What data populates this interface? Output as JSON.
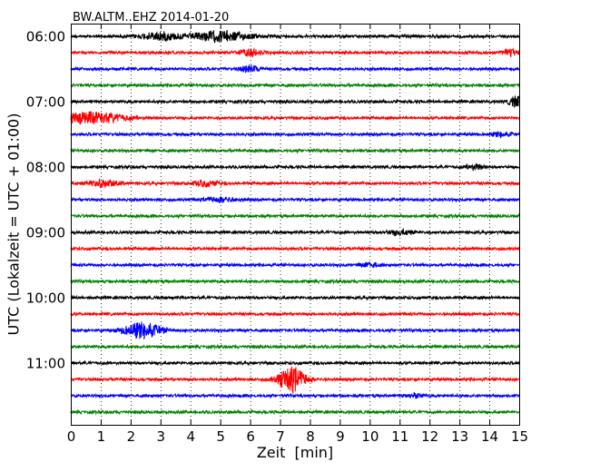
{
  "chart_data": {
    "type": "line",
    "title": "BW.ALTM..EHZ 2014-01-20",
    "xlabel": "Zeit  [min]",
    "ylabel": "UTC (Lokalzeit = UTC + 01:00)",
    "xlim": [
      0,
      15
    ],
    "x_ticks": [
      0,
      1,
      2,
      3,
      4,
      5,
      6,
      7,
      8,
      9,
      10,
      11,
      12,
      13,
      14,
      15
    ],
    "x_tick_labels": [
      "0",
      "1",
      "2",
      "3",
      "4",
      "5",
      "6",
      "7",
      "8",
      "9",
      "10",
      "11",
      "12",
      "13",
      "14",
      "15"
    ],
    "y_tick_labels": [
      "06:00",
      "07:00",
      "08:00",
      "09:00",
      "10:00",
      "11:00"
    ],
    "grid": "vertical dotted",
    "colors": [
      "#000000",
      "#ff0000",
      "#0000ff",
      "#008000"
    ],
    "series": [
      {
        "start": "06:00",
        "color": "#000000",
        "events": [
          {
            "t": 3.0,
            "amp": 0.7,
            "dur": 1.2
          },
          {
            "t": 5.0,
            "amp": 0.9,
            "dur": 1.8
          }
        ]
      },
      {
        "start": "06:15",
        "color": "#ff0000",
        "events": [
          {
            "t": 6.0,
            "amp": 0.5,
            "dur": 0.8
          },
          {
            "t": 14.7,
            "amp": 0.5,
            "dur": 0.6
          }
        ]
      },
      {
        "start": "06:30",
        "color": "#0000ff",
        "events": [
          {
            "t": 6.0,
            "amp": 0.6,
            "dur": 0.6
          }
        ]
      },
      {
        "start": "06:45",
        "color": "#008000",
        "events": []
      },
      {
        "start": "07:00",
        "color": "#000000",
        "events": [
          {
            "t": 14.9,
            "amp": 0.9,
            "dur": 0.5
          }
        ]
      },
      {
        "start": "07:15",
        "color": "#ff0000",
        "events": [
          {
            "t": 0.6,
            "amp": 1.0,
            "dur": 2.5
          }
        ]
      },
      {
        "start": "07:30",
        "color": "#0000ff",
        "events": [
          {
            "t": 14.4,
            "amp": 0.4,
            "dur": 0.6
          }
        ]
      },
      {
        "start": "07:45",
        "color": "#008000",
        "events": []
      },
      {
        "start": "08:00",
        "color": "#000000",
        "events": [
          {
            "t": 13.5,
            "amp": 0.5,
            "dur": 0.6
          }
        ]
      },
      {
        "start": "08:15",
        "color": "#ff0000",
        "events": [
          {
            "t": 1.1,
            "amp": 0.6,
            "dur": 1.0
          },
          {
            "t": 4.5,
            "amp": 0.5,
            "dur": 0.8
          }
        ]
      },
      {
        "start": "08:30",
        "color": "#0000ff",
        "events": [
          {
            "t": 5.0,
            "amp": 0.4,
            "dur": 1.0
          }
        ]
      },
      {
        "start": "08:45",
        "color": "#008000",
        "events": []
      },
      {
        "start": "09:00",
        "color": "#000000",
        "events": [
          {
            "t": 11.0,
            "amp": 0.4,
            "dur": 0.8
          }
        ]
      },
      {
        "start": "09:15",
        "color": "#ff0000",
        "events": []
      },
      {
        "start": "09:30",
        "color": "#0000ff",
        "events": [
          {
            "t": 10.0,
            "amp": 0.4,
            "dur": 0.6
          }
        ]
      },
      {
        "start": "09:45",
        "color": "#008000",
        "events": []
      },
      {
        "start": "10:00",
        "color": "#000000",
        "events": []
      },
      {
        "start": "10:15",
        "color": "#ff0000",
        "events": []
      },
      {
        "start": "10:30",
        "color": "#0000ff",
        "events": [
          {
            "t": 2.4,
            "amp": 1.4,
            "dur": 1.2
          }
        ]
      },
      {
        "start": "10:45",
        "color": "#008000",
        "events": []
      },
      {
        "start": "11:00",
        "color": "#000000",
        "events": []
      },
      {
        "start": "11:15",
        "color": "#ff0000",
        "events": [
          {
            "t": 7.4,
            "amp": 2.2,
            "dur": 0.9
          }
        ]
      },
      {
        "start": "11:30",
        "color": "#0000ff",
        "events": [
          {
            "t": 11.5,
            "amp": 0.4,
            "dur": 0.5
          }
        ]
      },
      {
        "start": "11:45",
        "color": "#008000",
        "events": []
      }
    ]
  }
}
